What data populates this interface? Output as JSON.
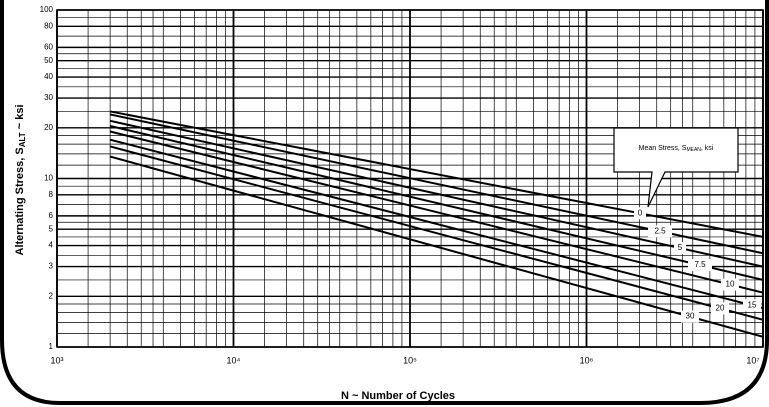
{
  "chart_data": {
    "type": "line",
    "x_label": "N ~ Number of Cycles",
    "y_label": {
      "text": "Alternating Stress, S",
      "sub": "ALT",
      "suffix": " ~ ksi"
    },
    "annotation": {
      "text": "Mean Stress, S",
      "sub": "MEAN",
      "suffix": ", ksi"
    },
    "log_x": true,
    "log_y": true,
    "grid": true,
    "x": [
      2000,
      10000000
    ],
    "series": [
      {
        "name": "0",
        "color": "#000000",
        "values": [
          25,
          4.5
        ]
      },
      {
        "name": "2.5",
        "color": "#000000",
        "values": [
          24,
          3.6
        ]
      },
      {
        "name": "5",
        "color": "#000000",
        "values": [
          22,
          3.0
        ]
      },
      {
        "name": "7.5",
        "color": "#000000",
        "values": [
          20.5,
          2.5
        ]
      },
      {
        "name": "10",
        "color": "#000000",
        "values": [
          19,
          2.1
        ]
      },
      {
        "name": "15",
        "color": "#000000",
        "values": [
          17,
          1.7
        ]
      },
      {
        "name": "20",
        "color": "#000000",
        "values": [
          15.5,
          1.45
        ]
      },
      {
        "name": "30",
        "color": "#000000",
        "values": [
          13.5,
          1.15
        ]
      }
    ],
    "xlim": [
      1000,
      10000000
    ],
    "xticks": [
      {
        "value": 1000,
        "label": "10³"
      },
      {
        "value": 10000,
        "label": "10⁴"
      },
      {
        "value": 100000,
        "label": "10⁵"
      },
      {
        "value": 1000000,
        "label": "10⁶"
      },
      {
        "value": 10000000,
        "label": "10⁷"
      }
    ],
    "ylim": [
      1,
      100
    ],
    "yticks": [
      1,
      2,
      3,
      4,
      5,
      6,
      8,
      10,
      20,
      30,
      40,
      50,
      60,
      80,
      100
    ]
  }
}
